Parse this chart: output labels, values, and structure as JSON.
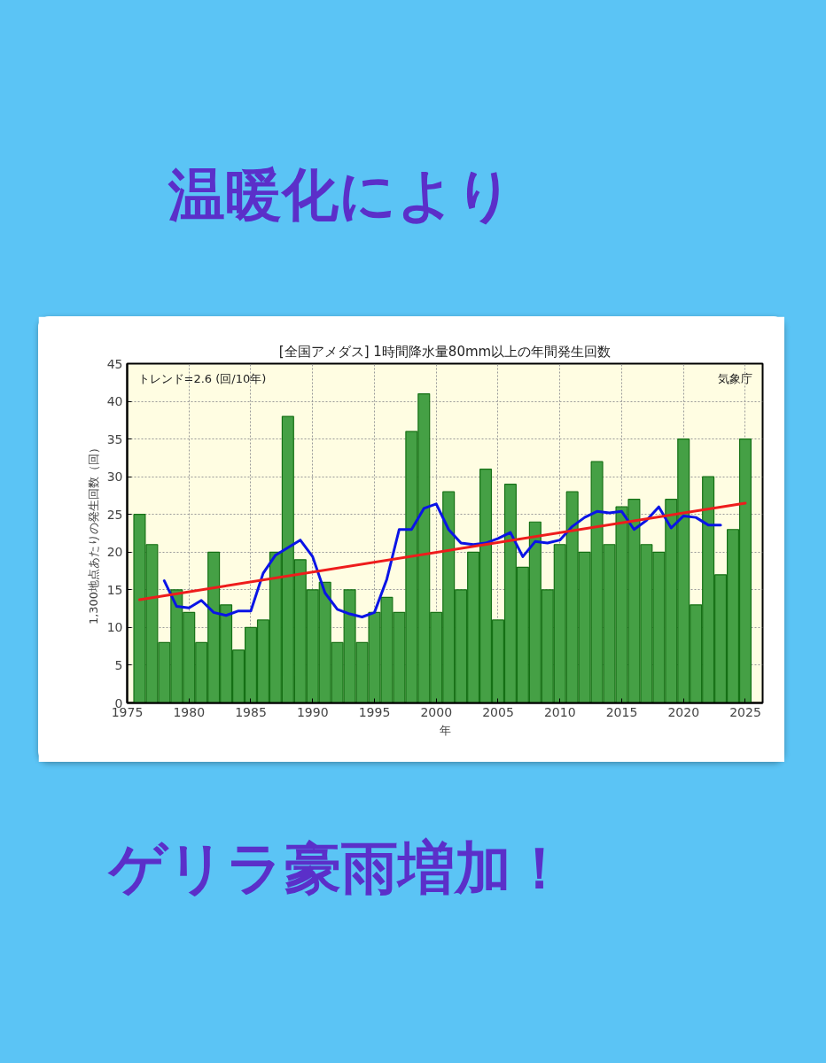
{
  "chart_data": {
    "type": "bar",
    "title": "[全国アメダス] 1時間降水量80mm以上の年間発生回数",
    "xlabel": "年",
    "ylabel": "1,300地点あたりの発生回数（回）",
    "annotations": [
      "温暖化により",
      "ゲリラ豪雨増加！",
      "トレンド=2.6 (回/10年)",
      "気象庁"
    ],
    "x": [
      1976,
      1977,
      1978,
      1979,
      1980,
      1981,
      1982,
      1983,
      1984,
      1985,
      1986,
      1987,
      1988,
      1989,
      1990,
      1991,
      1992,
      1993,
      1994,
      1995,
      1996,
      1997,
      1998,
      1999,
      2000,
      2001,
      2002,
      2003,
      2004,
      2005,
      2006,
      2007,
      2008,
      2009,
      2010,
      2011,
      2012,
      2013,
      2014,
      2015,
      2016,
      2017,
      2018,
      2019,
      2020,
      2021,
      2022,
      2023,
      2024,
      2025
    ],
    "series": [
      {
        "color": "#45a045",
        "values": [
          25,
          21,
          8,
          15,
          12,
          8,
          20,
          13,
          7,
          10,
          11,
          20,
          38,
          19,
          15,
          16,
          8,
          15,
          8,
          12,
          14,
          12,
          36,
          41,
          12,
          28,
          15,
          20,
          31,
          11,
          29,
          18,
          24,
          15,
          21,
          28,
          20,
          32,
          21,
          26,
          27,
          21,
          20,
          27,
          35,
          13,
          30,
          17,
          23,
          35
        ]
      },
      {
        "type": "line",
        "color": "#0a14e6",
        "x": [
          1978,
          1979,
          1980,
          1981,
          1982,
          1983,
          1984,
          1985,
          1986,
          1987,
          1988,
          1989,
          1990,
          1991,
          1992,
          1993,
          1994,
          1995,
          1996,
          1997,
          1998,
          1999,
          2000,
          2001,
          2002,
          2003,
          2004,
          2005,
          2006,
          2007,
          2008,
          2009,
          2010,
          2011,
          2012,
          2013,
          2014,
          2015,
          2016,
          2017,
          2018,
          2019,
          2020,
          2021,
          2022,
          2023
        ],
        "values": [
          16.2,
          12.8,
          12.6,
          13.6,
          12.0,
          11.6,
          12.2,
          12.2,
          17.2,
          19.6,
          20.6,
          21.6,
          19.4,
          14.6,
          12.4,
          11.8,
          11.4,
          12.0,
          16.4,
          23.0,
          23.0,
          25.8,
          26.4,
          23.0,
          21.2,
          21.0,
          21.2,
          21.8,
          22.6,
          19.4,
          21.4,
          21.2,
          21.6,
          23.4,
          24.6,
          25.4,
          25.2,
          25.4,
          23.0,
          24.2,
          26.0,
          23.2,
          24.8,
          24.6,
          23.6,
          23.6
        ]
      },
      {
        "type": "line",
        "color": "#ee1c1c",
        "x": [
          1976,
          2025
        ],
        "values": [
          13.7,
          26.5
        ]
      }
    ],
    "xlim": [
      1975,
      2026.4
    ],
    "xticks": [
      1975,
      1980,
      1985,
      1990,
      1995,
      2000,
      2005,
      2010,
      2015,
      2020,
      2025
    ],
    "ylim": [
      0,
      45
    ],
    "yticks": [
      0,
      5,
      10,
      15,
      20,
      25,
      30,
      35,
      40,
      45
    ],
    "grid": true
  }
}
